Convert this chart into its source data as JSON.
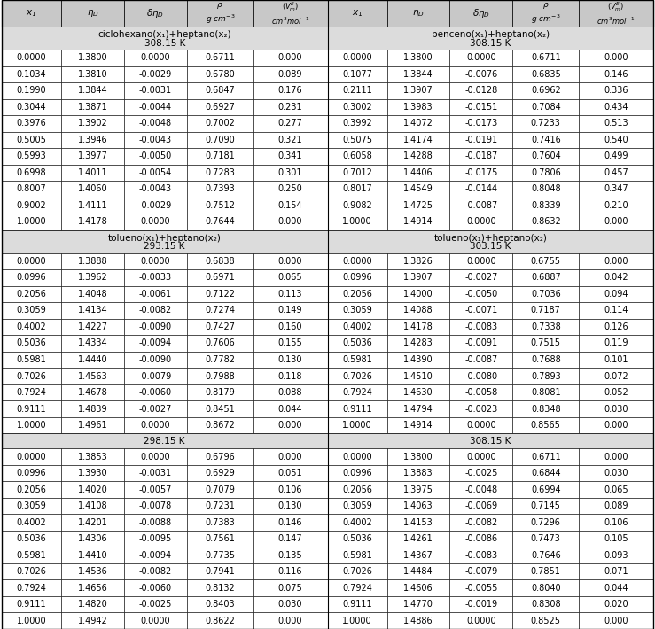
{
  "section1_title": "ciclohexano(x₁)+heptano(x₂)",
  "section1_temp": "308.15 K",
  "section2_title": "benceno(x₁)+heptano(x₂)",
  "section2_temp": "308.15 K",
  "section3_title": "tolueno(x₁)+heptano(x₂)",
  "section3_temp": "293.15 K",
  "section4_title": "tolueno(x₁)+heptano(x₂)",
  "section4_temp": "303.15 K",
  "section5_temp": "298.15 K",
  "section6_temp": "308.15 K",
  "data_s1": [
    [
      0.0,
      1.38,
      0.0,
      0.6711,
      0.0
    ],
    [
      0.1034,
      1.381,
      -0.0029,
      0.678,
      0.089
    ],
    [
      0.199,
      1.3844,
      -0.0031,
      0.6847,
      0.176
    ],
    [
      0.3044,
      1.3871,
      -0.0044,
      0.6927,
      0.231
    ],
    [
      0.3976,
      1.3902,
      -0.0048,
      0.7002,
      0.277
    ],
    [
      0.5005,
      1.3946,
      -0.0043,
      0.709,
      0.321
    ],
    [
      0.5993,
      1.3977,
      -0.005,
      0.7181,
      0.341
    ],
    [
      0.6998,
      1.4011,
      -0.0054,
      0.7283,
      0.301
    ],
    [
      0.8007,
      1.406,
      -0.0043,
      0.7393,
      0.25
    ],
    [
      0.9002,
      1.4111,
      -0.0029,
      0.7512,
      0.154
    ],
    [
      1.0,
      1.4178,
      0.0,
      0.7644,
      0.0
    ]
  ],
  "data_s2": [
    [
      0.0,
      1.38,
      0.0,
      0.6711,
      0.0
    ],
    [
      0.1077,
      1.3844,
      -0.0076,
      0.6835,
      0.146
    ],
    [
      0.2111,
      1.3907,
      -0.0128,
      0.6962,
      0.336
    ],
    [
      0.3002,
      1.3983,
      -0.0151,
      0.7084,
      0.434
    ],
    [
      0.3992,
      1.4072,
      -0.0173,
      0.7233,
      0.513
    ],
    [
      0.5075,
      1.4174,
      -0.0191,
      0.7416,
      0.54
    ],
    [
      0.6058,
      1.4288,
      -0.0187,
      0.7604,
      0.499
    ],
    [
      0.7012,
      1.4406,
      -0.0175,
      0.7806,
      0.457
    ],
    [
      0.8017,
      1.4549,
      -0.0144,
      0.8048,
      0.347
    ],
    [
      0.9082,
      1.4725,
      -0.0087,
      0.8339,
      0.21
    ],
    [
      1.0,
      1.4914,
      0.0,
      0.8632,
      0.0
    ]
  ],
  "data_s3": [
    [
      0.0,
      1.3888,
      0.0,
      0.6838,
      0.0
    ],
    [
      0.0996,
      1.3962,
      -0.0033,
      0.6971,
      0.065
    ],
    [
      0.2056,
      1.4048,
      -0.0061,
      0.7122,
      0.113
    ],
    [
      0.3059,
      1.4134,
      -0.0082,
      0.7274,
      0.149
    ],
    [
      0.4002,
      1.4227,
      -0.009,
      0.7427,
      0.16
    ],
    [
      0.5036,
      1.4334,
      -0.0094,
      0.7606,
      0.155
    ],
    [
      0.5981,
      1.444,
      -0.009,
      0.7782,
      0.13
    ],
    [
      0.7026,
      1.4563,
      -0.0079,
      0.7988,
      0.118
    ],
    [
      0.7924,
      1.4678,
      -0.006,
      0.8179,
      0.088
    ],
    [
      0.9111,
      1.4839,
      -0.0027,
      0.8451,
      0.044
    ],
    [
      1.0,
      1.4961,
      0.0,
      0.8672,
      0.0
    ]
  ],
  "data_s4": [
    [
      0.0,
      1.3826,
      0.0,
      0.6755,
      0.0
    ],
    [
      0.0996,
      1.3907,
      -0.0027,
      0.6887,
      0.042
    ],
    [
      0.2056,
      1.4,
      -0.005,
      0.7036,
      0.094
    ],
    [
      0.3059,
      1.4088,
      -0.0071,
      0.7187,
      0.114
    ],
    [
      0.4002,
      1.4178,
      -0.0083,
      0.7338,
      0.126
    ],
    [
      0.5036,
      1.4283,
      -0.0091,
      0.7515,
      0.119
    ],
    [
      0.5981,
      1.439,
      -0.0087,
      0.7688,
      0.101
    ],
    [
      0.7026,
      1.451,
      -0.008,
      0.7893,
      0.072
    ],
    [
      0.7924,
      1.463,
      -0.0058,
      0.8081,
      0.052
    ],
    [
      0.9111,
      1.4794,
      -0.0023,
      0.8348,
      0.03
    ],
    [
      1.0,
      1.4914,
      0.0,
      0.8565,
      0.0
    ]
  ],
  "data_s5": [
    [
      0.0,
      1.3853,
      0.0,
      0.6796,
      0.0
    ],
    [
      0.0996,
      1.393,
      -0.0031,
      0.6929,
      0.051
    ],
    [
      0.2056,
      1.402,
      -0.0057,
      0.7079,
      0.106
    ],
    [
      0.3059,
      1.4108,
      -0.0078,
      0.7231,
      0.13
    ],
    [
      0.4002,
      1.4201,
      -0.0088,
      0.7383,
      0.146
    ],
    [
      0.5036,
      1.4306,
      -0.0095,
      0.7561,
      0.147
    ],
    [
      0.5981,
      1.441,
      -0.0094,
      0.7735,
      0.135
    ],
    [
      0.7026,
      1.4536,
      -0.0082,
      0.7941,
      0.116
    ],
    [
      0.7924,
      1.4656,
      -0.006,
      0.8132,
      0.075
    ],
    [
      0.9111,
      1.482,
      -0.0025,
      0.8403,
      0.03
    ],
    [
      1.0,
      1.4942,
      0.0,
      0.8622,
      0.0
    ]
  ],
  "data_s6": [
    [
      0.0,
      1.38,
      0.0,
      0.6711,
      0.0
    ],
    [
      0.0996,
      1.3883,
      -0.0025,
      0.6844,
      0.03
    ],
    [
      0.2056,
      1.3975,
      -0.0048,
      0.6994,
      0.065
    ],
    [
      0.3059,
      1.4063,
      -0.0069,
      0.7145,
      0.089
    ],
    [
      0.4002,
      1.4153,
      -0.0082,
      0.7296,
      0.106
    ],
    [
      0.5036,
      1.4261,
      -0.0086,
      0.7473,
      0.105
    ],
    [
      0.5981,
      1.4367,
      -0.0083,
      0.7646,
      0.093
    ],
    [
      0.7026,
      1.4484,
      -0.0079,
      0.7851,
      0.071
    ],
    [
      0.7924,
      1.4606,
      -0.0055,
      0.804,
      0.044
    ],
    [
      0.9111,
      1.477,
      -0.0019,
      0.8308,
      0.02
    ],
    [
      1.0,
      1.4886,
      0.0,
      0.8525,
      0.0
    ]
  ],
  "bg_header": "#c8c8c8",
  "bg_section": "#dcdcdc",
  "bg_white": "#ffffff"
}
